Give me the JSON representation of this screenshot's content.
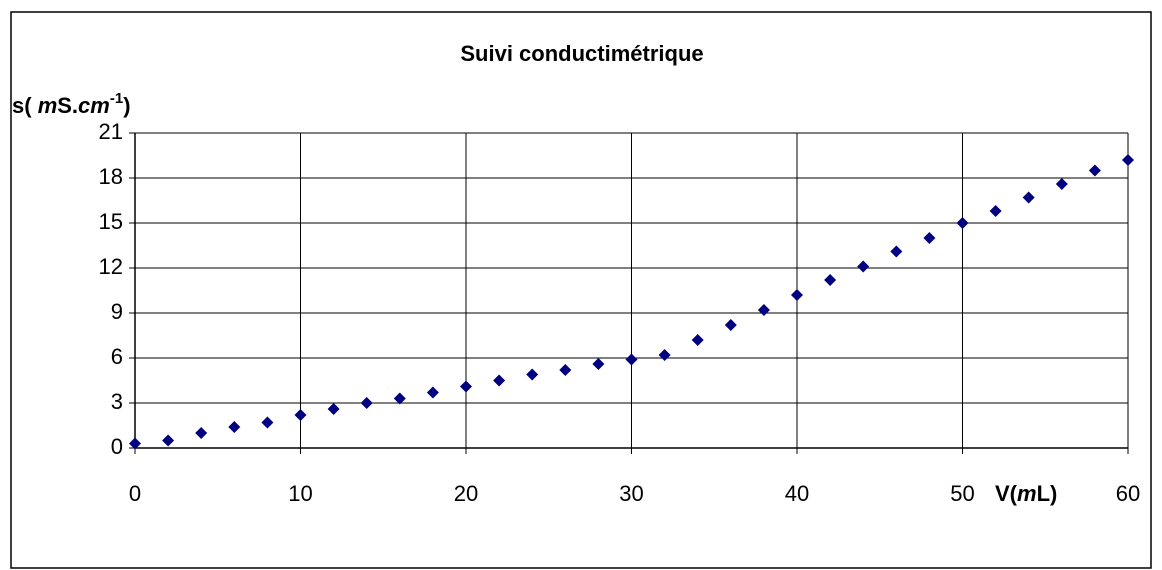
{
  "chart_data": {
    "type": "scatter",
    "title": "Suivi conductimétrique",
    "y_label_parts": [
      "s( ",
      "m",
      "S.",
      "cm",
      "-1",
      ")"
    ],
    "x_label_parts": [
      "V(",
      "m",
      "L)"
    ],
    "x": [
      0,
      2,
      4,
      6,
      8,
      10,
      12,
      14,
      16,
      18,
      20,
      22,
      24,
      26,
      28,
      30,
      32,
      34,
      36,
      38,
      40,
      42,
      44,
      46,
      48,
      50,
      52,
      54,
      56,
      58,
      60
    ],
    "series": [
      {
        "name": "s",
        "color": "#000080",
        "values": [
          0.3,
          0.5,
          1.0,
          1.4,
          1.7,
          2.2,
          2.6,
          3.0,
          3.3,
          3.7,
          4.1,
          4.5,
          4.9,
          5.2,
          5.6,
          5.9,
          6.2,
          7.2,
          8.2,
          9.2,
          10.2,
          11.2,
          12.1,
          13.1,
          14.0,
          15.0,
          15.8,
          16.7,
          17.6,
          18.5,
          19.2
        ]
      }
    ],
    "xlim": [
      0,
      60
    ],
    "xticks": [
      0,
      10,
      20,
      30,
      40,
      50,
      60
    ],
    "ylim": [
      0,
      21
    ],
    "yticks": [
      0,
      3,
      6,
      9,
      12,
      15,
      18,
      21
    ],
    "grid": true
  }
}
